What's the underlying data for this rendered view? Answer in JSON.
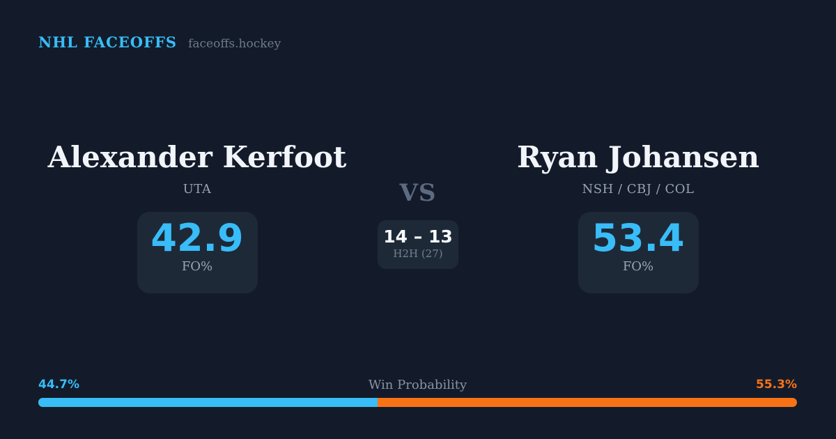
{
  "header": {
    "brand": "NHL FACEOFFS",
    "site": "faceoffs.hockey"
  },
  "left_player": {
    "name": "Alexander Kerfoot",
    "teams": "UTA",
    "stat_value": "42.9",
    "stat_label": "FO%"
  },
  "center": {
    "vs_label": "VS",
    "h2h_score": "14 – 13",
    "h2h_label": "H2H (27)"
  },
  "right_player": {
    "name": "Ryan Johansen",
    "teams": "NSH / CBJ / COL",
    "stat_value": "53.4",
    "stat_label": "FO%"
  },
  "win_probability": {
    "title": "Win Probability",
    "left_pct_label": "44.7%",
    "right_pct_label": "55.3%",
    "left_value": 44.7,
    "right_value": 55.3
  },
  "colors": {
    "background": "#131b2a",
    "card": "#1e2938",
    "accent_blue": "#38bdf8",
    "accent_orange": "#f97316",
    "text_primary": "#f1f5f9",
    "text_muted": "#97a3b6"
  }
}
